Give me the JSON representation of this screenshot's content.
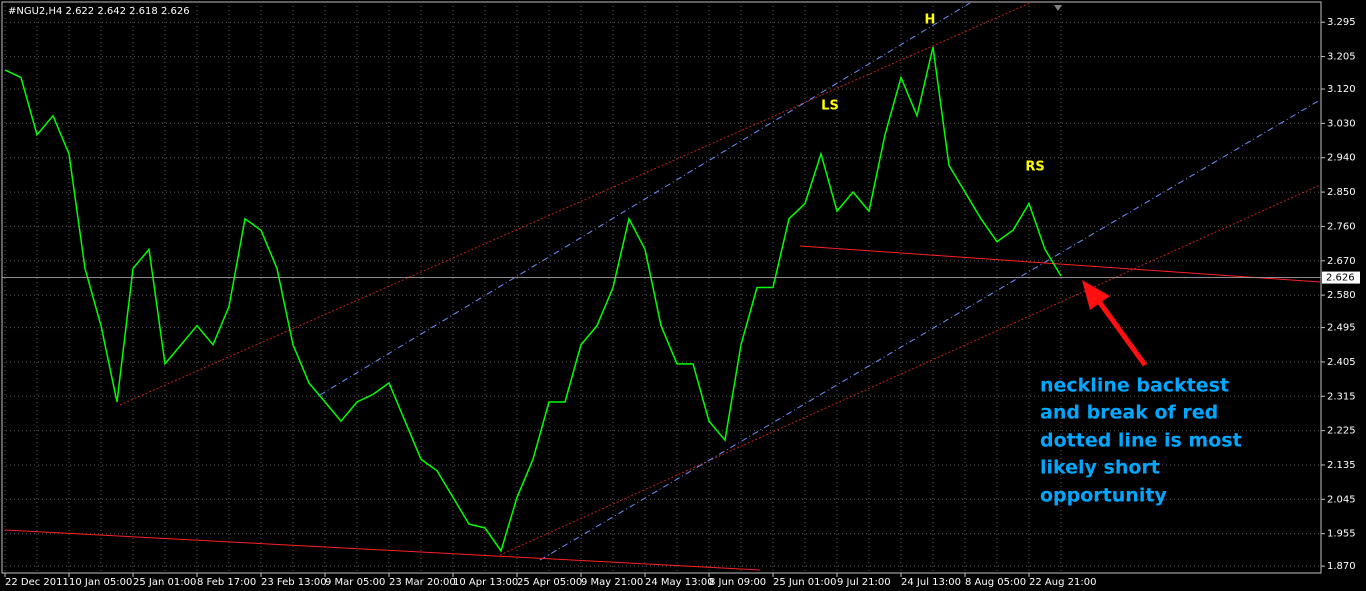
{
  "chart_data": {
    "type": "line",
    "title": "#NGU2,H4  2.622 2.642 2.618 2.626",
    "categories": [
      "22 Dec 2011",
      null,
      null,
      null,
      "10 Jan 05:00",
      null,
      null,
      null,
      "25 Jan 01:00",
      null,
      null,
      null,
      "8 Feb 17:00",
      null,
      null,
      null,
      "23 Feb 13:00",
      null,
      null,
      null,
      "9 Mar 05:00",
      null,
      null,
      null,
      "23 Mar 20:00",
      null,
      null,
      null,
      "10 Apr 13:00",
      null,
      null,
      null,
      "25 Apr 05:00",
      null,
      null,
      null,
      "9 May 21:00",
      null,
      null,
      null,
      "24 May 13:00",
      null,
      null,
      null,
      "8 Jun 09:00",
      null,
      null,
      null,
      "25 Jun 01:00",
      null,
      null,
      null,
      "9 Jul 21:00",
      null,
      null,
      null,
      "24 Jul 13:00",
      null,
      null,
      null,
      "8 Aug 05:00",
      null,
      null,
      null,
      "22 Aug 21:00",
      null,
      null
    ],
    "series": [
      {
        "color": "#00ff00",
        "values": [
          3.17,
          3.15,
          3.0,
          3.05,
          2.95,
          2.65,
          2.5,
          2.3,
          2.65,
          2.7,
          2.4,
          2.45,
          2.5,
          2.45,
          2.55,
          2.78,
          2.75,
          2.65,
          2.45,
          2.35,
          2.3,
          2.25,
          2.3,
          2.32,
          2.35,
          2.25,
          2.15,
          2.12,
          2.05,
          1.98,
          1.97,
          1.91,
          2.05,
          2.15,
          2.3,
          2.3,
          2.45,
          2.5,
          2.6,
          2.78,
          2.7,
          2.5,
          2.4,
          2.4,
          2.25,
          2.2,
          2.45,
          2.6,
          2.6,
          2.78,
          2.82,
          2.95,
          2.8,
          2.85,
          2.8,
          3.0,
          3.15,
          3.05,
          3.23,
          2.92,
          2.85,
          2.78,
          2.72,
          2.75,
          2.82,
          2.7,
          2.63
        ]
      }
    ],
    "ylim": [
      1.852,
      3.348
    ],
    "yticks": [
      3.295,
      3.205,
      {
        "value": 3.12,
        "label": "3.120"
      },
      {
        "value": 3.03,
        "label": "3.030"
      },
      {
        "value": 2.94,
        "label": "2.940"
      },
      {
        "value": 2.85,
        "label": "2.850"
      },
      {
        "value": 2.76,
        "label": "2.760"
      },
      {
        "value": 2.67,
        "label": "2.670"
      },
      {
        "value": 2.58,
        "label": "2.580"
      },
      2.495,
      2.405,
      2.315,
      2.225,
      2.135,
      2.045,
      1.955,
      {
        "value": 1.87,
        "label": "1.870"
      }
    ],
    "last_price": 2.626,
    "grid": true,
    "annotations": [
      "H",
      "LS",
      "RS"
    ],
    "note": [
      "neckline backtest",
      "and break of red",
      "dotted line is most",
      "likely short",
      "opportunity"
    ]
  }
}
